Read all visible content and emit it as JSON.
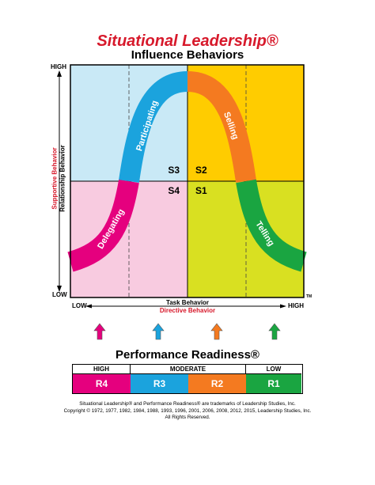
{
  "header": {
    "title": "Situational Leadership®",
    "subtitle": "Influence Behaviors"
  },
  "y_axis": {
    "high": "HIGH",
    "low": "LOW",
    "label_red": "Supportive Behavior",
    "label_black": "Relationship Behavior"
  },
  "x_axis": {
    "low": "LOW",
    "high": "HIGH",
    "label_black": "Task Behavior",
    "label_red": "Directive Behavior",
    "tm": "TM"
  },
  "quadrants": [
    {
      "id": "S3",
      "color": "#c9e9f6"
    },
    {
      "id": "S2",
      "color": "#ffcc00"
    },
    {
      "id": "S4",
      "color": "#f8cbe0"
    },
    {
      "id": "S1",
      "color": "#d9e021"
    }
  ],
  "curve": [
    {
      "label": "Delegating",
      "color": "#e5007e"
    },
    {
      "label": "Participating",
      "color": "#1ba3dd"
    },
    {
      "label": "Selling",
      "color": "#f47a20"
    },
    {
      "label": "Telling",
      "color": "#1aa541"
    }
  ],
  "arrow_colors": [
    "#e5007e",
    "#1ba3dd",
    "#f47a20",
    "#1aa541"
  ],
  "readiness": {
    "title": "Performance Readiness®",
    "headers": [
      "HIGH",
      "MODERATE",
      "LOW"
    ],
    "cells": [
      {
        "label": "R4",
        "color": "#e5007e"
      },
      {
        "label": "R3",
        "color": "#1ba3dd"
      },
      {
        "label": "R2",
        "color": "#f47a20"
      },
      {
        "label": "R1",
        "color": "#1aa541"
      }
    ]
  },
  "footer": {
    "line1": "Situational Leadership® and Performance Readiness® are trademarks of Leadership Studies, Inc.",
    "line2": "Copyright © 1972, 1977, 1982, 1984, 1988, 1993, 1996, 2001, 2006, 2008, 2012, 2015, Leadership Studies, Inc.",
    "line3": "All Rights Reserved."
  }
}
